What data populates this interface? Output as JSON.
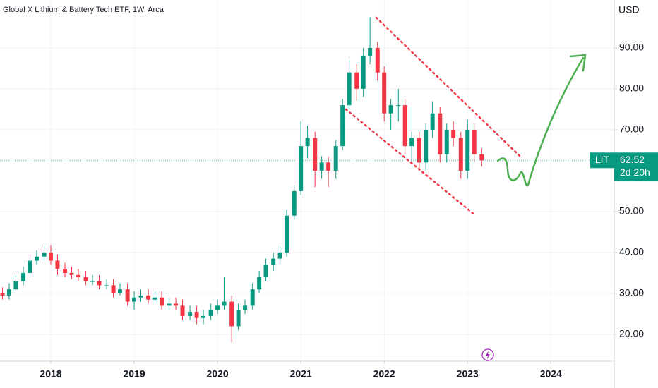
{
  "chart_data": {
    "type": "candlestick",
    "title": "Global X Lithium & Battery Tech ETF, 1W, Arca",
    "currency": "USD",
    "symbol": "LIT",
    "last_price": 62.52,
    "countdown": "2d 20h",
    "up_color": "#089981",
    "down_color": "#f23645",
    "grid": true,
    "x": [
      2017.42,
      2017.5,
      2017.58,
      2017.67,
      2017.75,
      2017.83,
      2017.92,
      2018.0,
      2018.08,
      2018.17,
      2018.25,
      2018.33,
      2018.42,
      2018.5,
      2018.58,
      2018.67,
      2018.75,
      2018.83,
      2018.92,
      2019.0,
      2019.08,
      2019.17,
      2019.25,
      2019.33,
      2019.42,
      2019.5,
      2019.58,
      2019.67,
      2019.75,
      2019.83,
      2019.92,
      2020.0,
      2020.08,
      2020.17,
      2020.25,
      2020.33,
      2020.42,
      2020.5,
      2020.58,
      2020.67,
      2020.75,
      2020.83,
      2020.92,
      2021.0,
      2021.08,
      2021.17,
      2021.25,
      2021.33,
      2021.42,
      2021.5,
      2021.58,
      2021.67,
      2021.75,
      2021.83,
      2021.92,
      2022.0,
      2022.08,
      2022.17,
      2022.25,
      2022.33,
      2022.42,
      2022.5,
      2022.58,
      2022.67,
      2022.75,
      2022.83,
      2022.92,
      2023.0,
      2023.08,
      2023.17
    ],
    "open": [
      30,
      29.5,
      31,
      33,
      35,
      38,
      39,
      40,
      38,
      36,
      35,
      34.5,
      34,
      33,
      33,
      32,
      32,
      30,
      31,
      28,
      29,
      29.5,
      28.5,
      29,
      27,
      27.5,
      27,
      24.5,
      25.5,
      24,
      24.5,
      26,
      27,
      28,
      22,
      26,
      27,
      31,
      34,
      37,
      38.5,
      40,
      49,
      55,
      66,
      68,
      60,
      62,
      60,
      66,
      76,
      84,
      80,
      88,
      90,
      84,
      74,
      76,
      76,
      66,
      68,
      62,
      70,
      74,
      64,
      70,
      68,
      60,
      70,
      64
    ],
    "high": [
      31.5,
      32.5,
      34.5,
      36.5,
      39.5,
      40.5,
      41.5,
      41.8,
      39.5,
      37.5,
      36.5,
      36,
      35.5,
      34.5,
      34.5,
      33.5,
      33.5,
      32.5,
      32.5,
      30.5,
      31,
      31,
      30.5,
      30.5,
      29,
      29,
      28.5,
      27,
      27,
      26,
      27.5,
      28.5,
      34,
      29.5,
      27.5,
      28.5,
      32.5,
      35.5,
      38.5,
      40,
      41.5,
      50.5,
      56.5,
      72,
      71,
      69.5,
      63.5,
      63.5,
      67.5,
      77.5,
      87,
      86,
      90,
      97.5,
      91.5,
      85.5,
      77.5,
      80,
      77.5,
      69.5,
      69.5,
      71.5,
      77,
      75.5,
      71.5,
      72,
      69.5,
      72.5,
      71.5,
      65.5
    ],
    "low": [
      28.5,
      28.5,
      30,
      32,
      34,
      37,
      38,
      37,
      34.5,
      34,
      33.5,
      33,
      32,
      32,
      31,
      31,
      29,
      29.5,
      27,
      26,
      28,
      27.5,
      27.5,
      26,
      26,
      26,
      23.5,
      23.5,
      22.5,
      22.5,
      23.5,
      25,
      26,
      18,
      21,
      25,
      26,
      30,
      33,
      35.5,
      37,
      39,
      48,
      54,
      63,
      56,
      58,
      56,
      58,
      65,
      75,
      77,
      78,
      86,
      82,
      72,
      70,
      72,
      64,
      62,
      60,
      60,
      68,
      62,
      62,
      66,
      58,
      58,
      62,
      61
    ],
    "close": [
      29.5,
      31,
      33,
      35,
      38,
      39,
      40,
      38,
      36,
      35,
      34.5,
      34,
      33,
      33,
      32,
      32,
      30,
      31,
      28,
      29,
      29.5,
      28.5,
      29,
      27,
      27.5,
      27,
      24.5,
      25.5,
      24,
      24.5,
      26,
      27,
      28,
      22,
      26,
      27,
      31,
      34,
      37,
      38.5,
      40,
      49,
      55,
      66,
      68,
      60,
      62,
      60,
      66,
      76,
      84,
      80,
      88,
      90,
      84,
      74,
      76,
      76,
      66,
      68,
      62,
      70,
      74,
      64,
      70,
      68,
      60,
      70,
      64,
      62.52
    ],
    "xlim": [
      2017.39,
      2024.76
    ],
    "xticks": [
      2018,
      2019,
      2020,
      2021,
      2022,
      2023,
      2024
    ],
    "ylim": [
      13.45,
      101.7
    ],
    "yticks": [
      {
        "value": 20,
        "label": "20.00"
      },
      {
        "value": 30,
        "label": "30.00"
      },
      {
        "value": 40,
        "label": "40.00"
      },
      {
        "value": 50,
        "label": "50.00"
      },
      {
        "value": 70,
        "label": "70.00"
      },
      {
        "value": 80,
        "label": "80.00"
      },
      {
        "value": 90,
        "label": "90.00"
      }
    ]
  }
}
